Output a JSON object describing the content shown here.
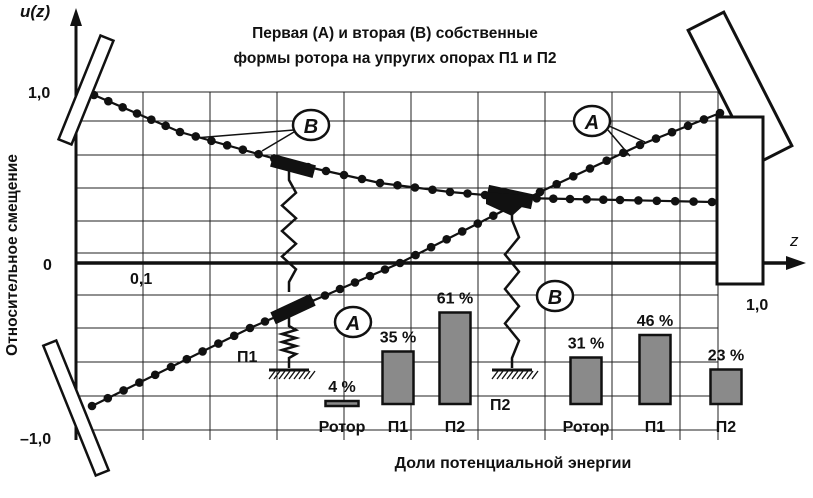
{
  "title_line1": "Первая (A) и вторая (B) собственные",
  "title_line2": "формы ротора на упругих опорах П1 и П2",
  "y_axis_symbol": "u(z)",
  "x_axis_symbol": "z",
  "y_axis_label": "Относительное смещение",
  "tick_y_top": "1,0",
  "tick_y_zero": "0",
  "tick_y_bottom": "–1,0",
  "tick_x_01": "0,1",
  "tick_x_end": "1,0",
  "mode_a_tag": "A",
  "mode_b_tag": "B",
  "support_p1": "П1",
  "support_p2": "П2",
  "energy_caption": "Доли потенциальной энергии",
  "colors": {
    "line": "#111111",
    "bar_fill": "#8a8a8a",
    "grid": "#222222"
  },
  "chart_data": {
    "type": "bar",
    "title": "Доли потенциальной энергии",
    "categories": [
      "Ротор",
      "П1",
      "П2"
    ],
    "series": [
      {
        "name": "A",
        "values": [
          4,
          35,
          61
        ]
      },
      {
        "name": "B",
        "values": [
          31,
          46,
          23
        ]
      }
    ],
    "value_labels": {
      "A": [
        "4 %",
        "35 %",
        "61 %"
      ],
      "B": [
        "31 %",
        "46 %",
        "23 %"
      ]
    },
    "ylim": [
      0,
      100
    ]
  }
}
